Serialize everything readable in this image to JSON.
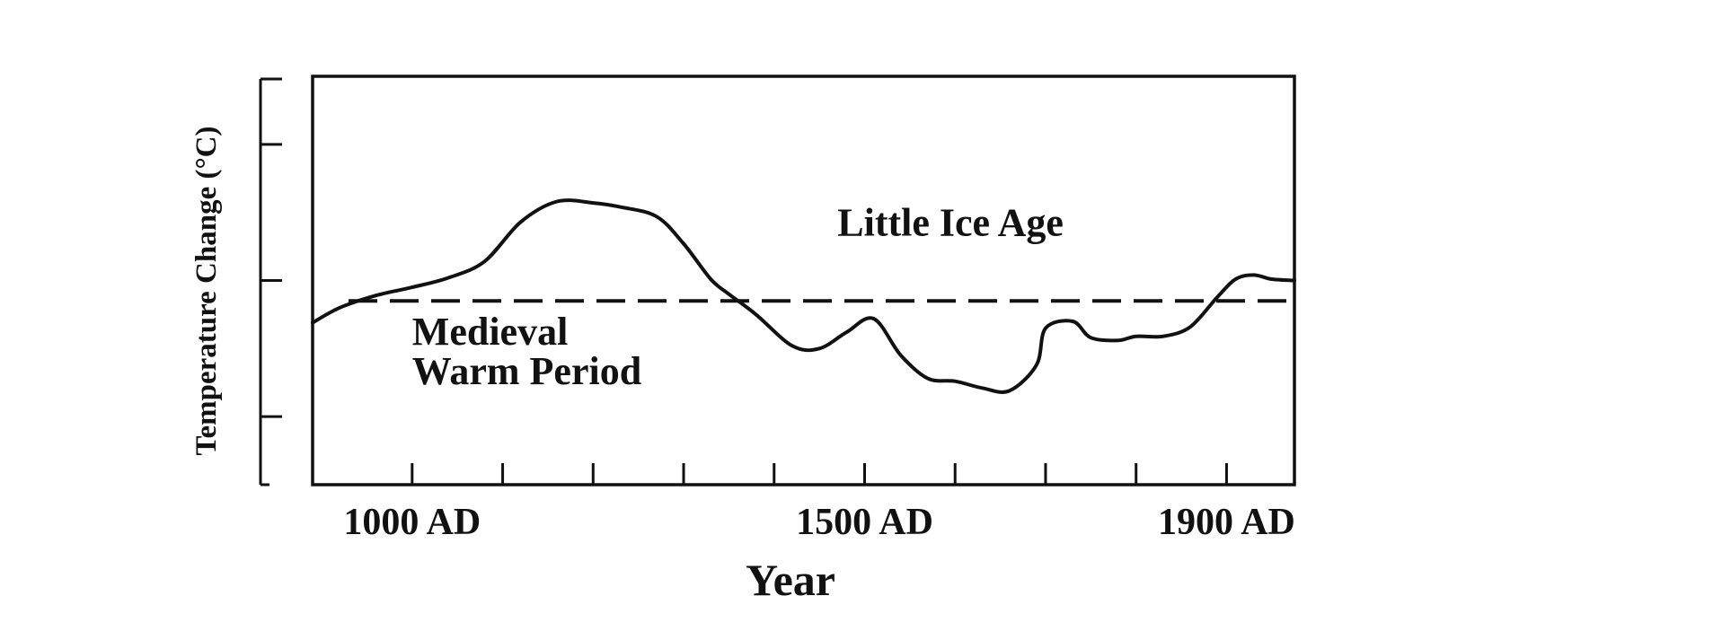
{
  "chart_data": {
    "type": "line",
    "title": "",
    "xlabel": "Year",
    "ylabel": "Temperature Change (°C)",
    "x_tick_labels": [
      {
        "year": 1000,
        "label": "1000 AD"
      },
      {
        "year": 1500,
        "label": "1500 AD"
      },
      {
        "year": 1900,
        "label": "1900 AD"
      }
    ],
    "x_minor_ticks": [
      1000,
      1100,
      1200,
      1300,
      1400,
      1500,
      1600,
      1700,
      1800,
      1900
    ],
    "xlim": [
      890,
      1975
    ],
    "ylim": [
      -1.5,
      1.5
    ],
    "y_ticks": [
      -1,
      0,
      1
    ],
    "y_tick_labels_shown": false,
    "grid": false,
    "legend": false,
    "reference_line": {
      "y": -0.15,
      "style": "dashed"
    },
    "annotations": [
      {
        "text": "Little Ice Age",
        "x": 1470,
        "y": 0.33
      },
      {
        "text": "Medieval",
        "x": 1000,
        "y": -0.47
      },
      {
        "text": "Warm Period",
        "x": 1000,
        "y": -0.76
      }
    ],
    "series": [
      {
        "values_x": [
          890,
          920,
          960,
          1000,
          1040,
          1080,
          1120,
          1160,
          1200,
          1230,
          1270,
          1300,
          1330,
          1350,
          1380,
          1420,
          1450,
          1480,
          1510,
          1540,
          1570,
          1600,
          1630,
          1660,
          1690,
          1700,
          1730,
          1750,
          1780,
          1800,
          1830,
          1860,
          1890,
          1910,
          1930,
          1950,
          1975
        ],
        "values_y": [
          -0.31,
          -0.2,
          -0.11,
          -0.05,
          0.02,
          0.14,
          0.43,
          0.58,
          0.57,
          0.54,
          0.47,
          0.27,
          0.01,
          -0.1,
          -0.25,
          -0.48,
          -0.5,
          -0.38,
          -0.28,
          -0.55,
          -0.72,
          -0.74,
          -0.79,
          -0.81,
          -0.62,
          -0.35,
          -0.3,
          -0.42,
          -0.44,
          -0.41,
          -0.41,
          -0.34,
          -0.12,
          0.01,
          0.04,
          0.01,
          0.0
        ]
      }
    ]
  }
}
